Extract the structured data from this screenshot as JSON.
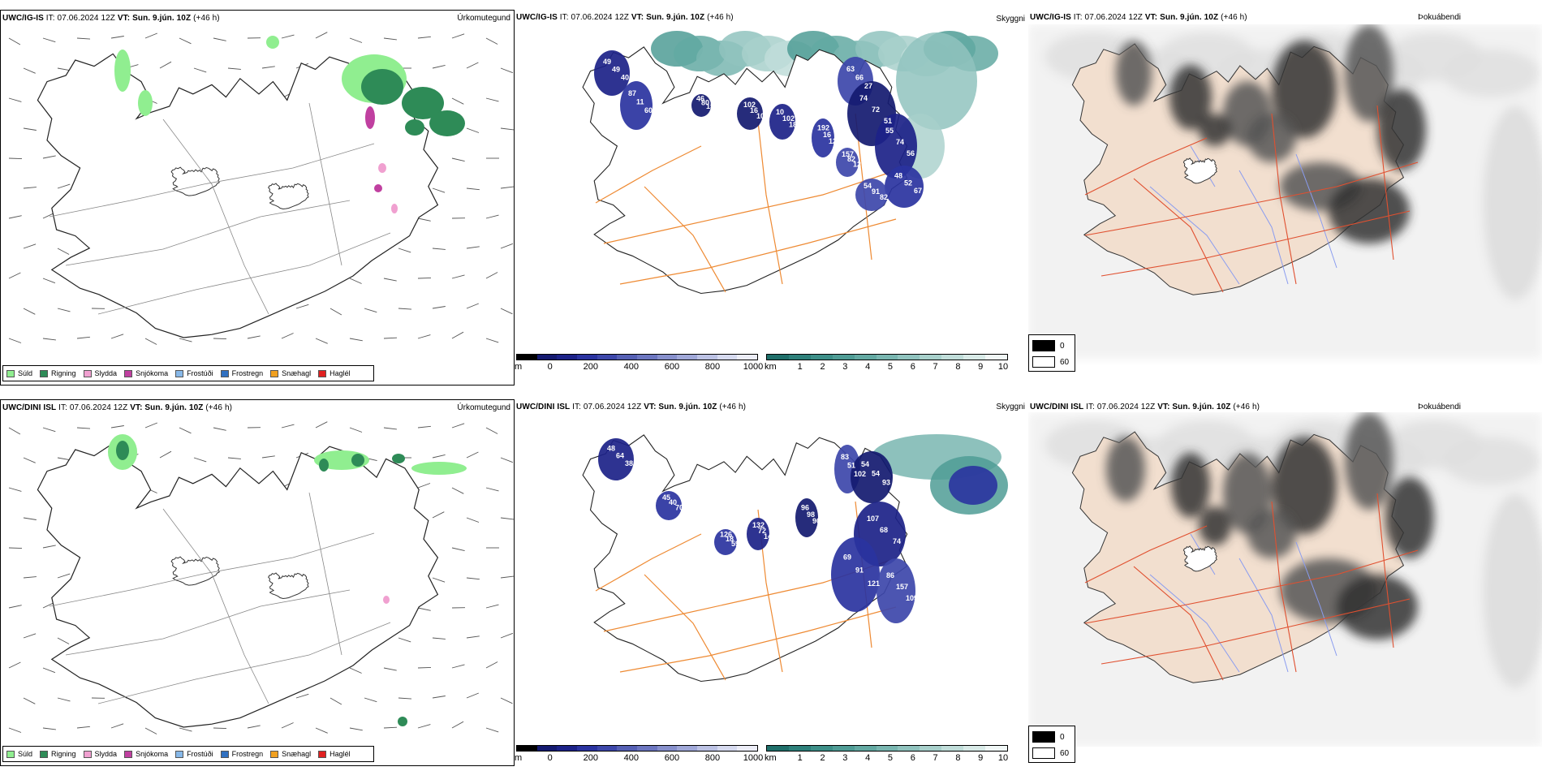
{
  "rows": [
    {
      "model": "UWC/IG-IS",
      "it_label": "IT:",
      "it_value": "07.06.2024 12Z",
      "vt_label": "VT:",
      "vt_value": "Sun. 9.jún. 10Z",
      "lead": "(+46 h)"
    },
    {
      "model": "UWC/DINI ISL",
      "it_label": "IT:",
      "it_value": "07.06.2024 12Z",
      "vt_label": "VT:",
      "vt_value": "Sun. 9.jún. 10Z",
      "lead": "(+46 h)"
    }
  ],
  "panel_titles": {
    "precip": "Úrkomutegund",
    "visibility": "Skyggni",
    "fog": "Þokuábendi"
  },
  "precip_legend": [
    {
      "label": "Súld",
      "color": "#90ee90"
    },
    {
      "label": "Rigning",
      "color": "#2e8b57"
    },
    {
      "label": "Slydda",
      "color": "#f0a0d0"
    },
    {
      "label": "Snjókoma",
      "color": "#c040a0"
    },
    {
      "label": "Frostúði",
      "color": "#87b8e8"
    },
    {
      "label": "Frostregn",
      "color": "#3070c0"
    },
    {
      "label": "Snæhagl",
      "color": "#f0a020"
    },
    {
      "label": "Haglél",
      "color": "#e02020"
    }
  ],
  "ceiling_bar": {
    "unit": "m",
    "ticks": [
      "0",
      "200",
      "400",
      "600",
      "800",
      "1000"
    ],
    "colors": [
      "#000000",
      "#141a70",
      "#1c2288",
      "#2a33a0",
      "#3d47aa",
      "#5560b4",
      "#6c76c0",
      "#8790cc",
      "#a0a8d8",
      "#bcc2e4",
      "#d6daef",
      "#ecedf7"
    ]
  },
  "visibility_bar": {
    "unit": "km",
    "ticks": [
      "1",
      "2",
      "3",
      "4",
      "5",
      "6",
      "7",
      "8",
      "9",
      "10"
    ],
    "colors": [
      "#1f6f6a",
      "#2d807a",
      "#3d8f88",
      "#4f9c95",
      "#63a9a2",
      "#79b6b0",
      "#90c3be",
      "#a8d0cb",
      "#c0ddd9",
      "#d8eae7",
      "#f0f7f6"
    ]
  },
  "cloud_legend": [
    {
      "label": "0",
      "color": "#000000"
    },
    {
      "label": "60",
      "color": "#ffffff"
    }
  ],
  "ceiling_labels": [
    [
      "49",
      "49",
      "40",
      "87",
      "11",
      "60",
      "63",
      "66",
      "27",
      "74",
      "72",
      "51",
      "55",
      "74",
      "56",
      "48",
      "52",
      "67",
      "54",
      "91",
      "82",
      "102",
      "16",
      "10",
      "10",
      "102",
      "181",
      "192",
      "16",
      "126",
      "157",
      "82",
      "12",
      "46",
      "80",
      "15"
    ],
    [
      "48",
      "64",
      "38",
      "45",
      "40",
      "70",
      "83",
      "51",
      "102",
      "54",
      "54",
      "93",
      "107",
      "68",
      "74",
      "69",
      "91",
      "121",
      "86",
      "157",
      "109",
      "96",
      "98",
      "90",
      "132",
      "72",
      "14",
      "126",
      "18",
      "59"
    ]
  ]
}
